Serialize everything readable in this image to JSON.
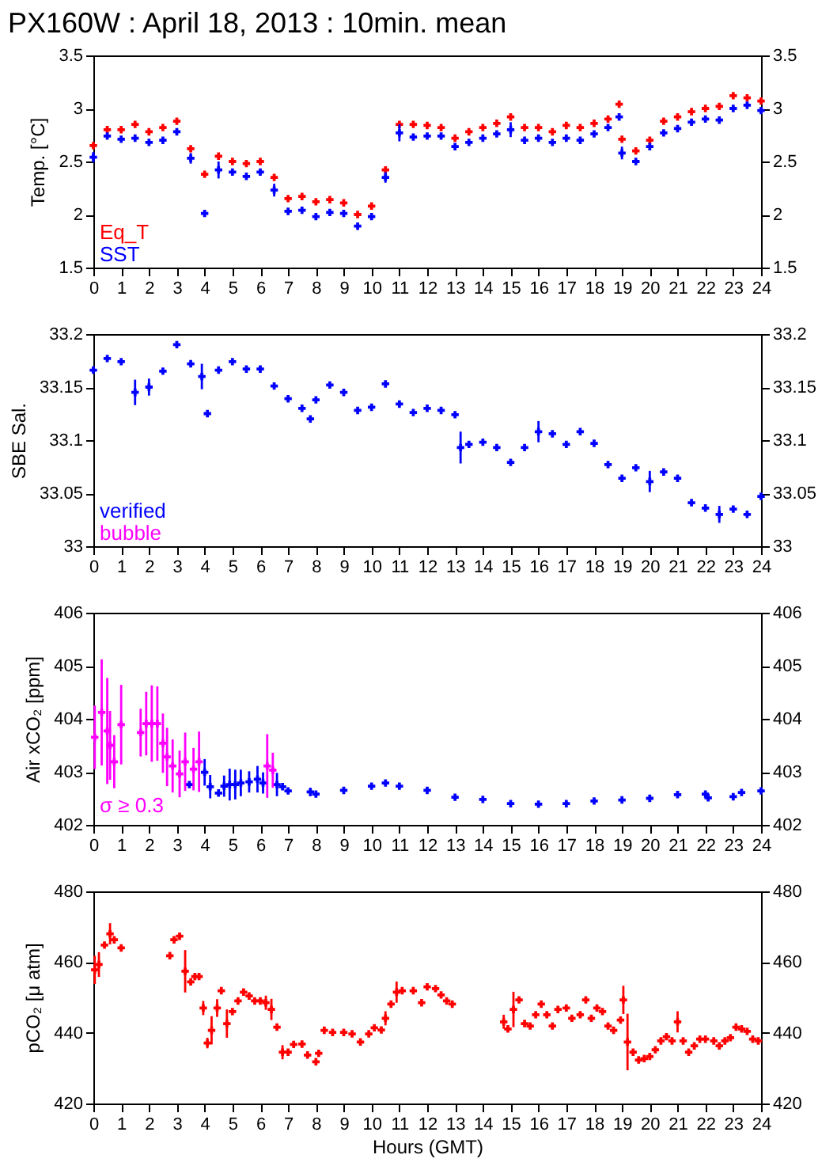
{
  "chart_data": [
    {
      "type": "scatter",
      "title": "PX160W : April 18, 2013 : 10min. mean",
      "ylabel": "Temp. [°C]",
      "xlim": [
        0,
        24
      ],
      "xticks": [
        0,
        1,
        2,
        3,
        4,
        5,
        6,
        7,
        8,
        9,
        10,
        11,
        12,
        13,
        14,
        15,
        16,
        17,
        18,
        19,
        20,
        21,
        22,
        23,
        24
      ],
      "ylim": [
        1.5,
        3.5
      ],
      "yticks": [
        1.5,
        2,
        2.5,
        3,
        3.5
      ],
      "y2lim": [
        1.5,
        3.5
      ],
      "y2ticks": [
        1.5,
        2,
        2.5,
        3,
        3.5
      ],
      "grid": false,
      "legend": "bottom left",
      "marker": "cross",
      "x": [
        0,
        0.5,
        1,
        1.5,
        2,
        2.5,
        3,
        3.5,
        4,
        4.5,
        5,
        5.5,
        6,
        6.5,
        7,
        7.5,
        8,
        8.5,
        9,
        9.5,
        10,
        10.5,
        11,
        11.5,
        12,
        12.5,
        13,
        13.5,
        14,
        14.5,
        15,
        15.5,
        16,
        16.5,
        17,
        17.5,
        18,
        18.5,
        18.9,
        19,
        19.5,
        20,
        20.5,
        21,
        21.5,
        22,
        22.5,
        23,
        23.5,
        24
      ],
      "series": [
        {
          "name": "Eq_T",
          "color": "#ff0000",
          "values": [
            2.65,
            2.8,
            2.8,
            2.85,
            2.78,
            2.82,
            2.88,
            2.62,
            2.38,
            2.55,
            2.5,
            2.48,
            2.5,
            2.35,
            2.15,
            2.17,
            2.12,
            2.14,
            2.11,
            2.0,
            2.08,
            2.42,
            2.85,
            2.85,
            2.84,
            2.82,
            2.72,
            2.78,
            2.82,
            2.86,
            2.92,
            2.82,
            2.82,
            2.78,
            2.84,
            2.82,
            2.86,
            2.9,
            3.04,
            2.71,
            2.6,
            2.7,
            2.88,
            2.92,
            2.97,
            3.0,
            3.02,
            3.12,
            3.1,
            3.07
          ]
        },
        {
          "name": "SST",
          "color": "#0000ff",
          "values": [
            2.54,
            2.74,
            2.71,
            2.72,
            2.68,
            2.7,
            2.78,
            2.53,
            2.01,
            2.42,
            2.4,
            2.36,
            2.4,
            2.23,
            2.03,
            2.04,
            1.98,
            2.02,
            2.01,
            1.89,
            1.98,
            2.35,
            2.77,
            2.73,
            2.74,
            2.74,
            2.64,
            2.68,
            2.72,
            2.76,
            2.8,
            2.7,
            2.72,
            2.68,
            2.72,
            2.7,
            2.76,
            2.82,
            2.92,
            2.58,
            2.5,
            2.64,
            2.77,
            2.81,
            2.87,
            2.9,
            2.89,
            3.0,
            3.03,
            2.98
          ],
          "errors": [
            0.05,
            null,
            null,
            null,
            null,
            null,
            null,
            0.05,
            null,
            0.08,
            null,
            null,
            null,
            0.06,
            null,
            null,
            null,
            null,
            null,
            null,
            null,
            0.05,
            0.08,
            null,
            null,
            null,
            null,
            null,
            null,
            null,
            0.07,
            null,
            null,
            null,
            null,
            null,
            null,
            null,
            null,
            0.06,
            null,
            null,
            null,
            null,
            null,
            null,
            null,
            null,
            null,
            null
          ]
        }
      ]
    },
    {
      "type": "scatter",
      "ylabel": "SBE Sal.",
      "xlim": [
        0,
        24
      ],
      "xticks": [
        0,
        1,
        2,
        3,
        4,
        5,
        6,
        7,
        8,
        9,
        10,
        11,
        12,
        13,
        14,
        15,
        16,
        17,
        18,
        19,
        20,
        21,
        22,
        23,
        24
      ],
      "ylim": [
        33,
        33.2
      ],
      "yticks": [
        33,
        33.05,
        33.1,
        33.15,
        33.2
      ],
      "y2lim": [
        33,
        33.2
      ],
      "y2ticks": [
        33,
        33.05,
        33.1,
        33.15,
        33.2
      ],
      "grid": false,
      "legend": "bottom left",
      "marker": "cross",
      "series": [
        {
          "name": "verified",
          "color": "#0000ff",
          "x": [
            0,
            0.5,
            1,
            1.5,
            2,
            2.5,
            3,
            3.5,
            3.9,
            4.1,
            4.5,
            5,
            5.5,
            6,
            6.5,
            7,
            7.5,
            7.8,
            8,
            8.5,
            9,
            9.5,
            10,
            10.5,
            11,
            11.5,
            12,
            12.5,
            13,
            13.2,
            13.5,
            14,
            14.5,
            15,
            15.5,
            16,
            16.5,
            17,
            17.5,
            18,
            18.5,
            19,
            19.5,
            20,
            20.5,
            21,
            21.5,
            22,
            22.5,
            23,
            23.5,
            24
          ],
          "values": [
            33.166,
            33.177,
            33.174,
            33.145,
            33.15,
            33.165,
            33.19,
            33.172,
            33.16,
            33.125,
            33.166,
            33.174,
            33.167,
            33.167,
            33.151,
            33.139,
            33.13,
            33.12,
            33.138,
            33.152,
            33.145,
            33.128,
            33.131,
            33.153,
            33.134,
            33.126,
            33.13,
            33.128,
            33.124,
            33.093,
            33.096,
            33.098,
            33.093,
            33.079,
            33.093,
            33.108,
            33.106,
            33.096,
            33.108,
            33.097,
            33.077,
            33.064,
            33.074,
            33.061,
            33.07,
            33.064,
            33.041,
            33.036,
            33.03,
            33.035,
            33.03,
            33.047
          ],
          "errors": [
            null,
            null,
            null,
            0.012,
            0.008,
            null,
            null,
            null,
            0.012,
            null,
            null,
            null,
            null,
            null,
            null,
            null,
            null,
            null,
            null,
            null,
            null,
            null,
            null,
            null,
            null,
            null,
            null,
            null,
            null,
            0.015,
            null,
            null,
            null,
            null,
            null,
            0.01,
            null,
            null,
            null,
            null,
            null,
            null,
            null,
            0.01,
            null,
            null,
            null,
            null,
            0.008,
            null,
            null,
            null
          ]
        },
        {
          "name": "bubble",
          "color": "#ff00ff"
        }
      ]
    },
    {
      "type": "scatter",
      "ylabel": "Air xCO₂ [ppm]",
      "xlim": [
        0,
        24
      ],
      "xticks": [
        0,
        1,
        2,
        3,
        4,
        5,
        6,
        7,
        8,
        9,
        10,
        11,
        12,
        13,
        14,
        15,
        16,
        17,
        18,
        19,
        20,
        21,
        22,
        23,
        24
      ],
      "ylim": [
        402,
        406
      ],
      "yticks": [
        402,
        403,
        404,
        405,
        406
      ],
      "y2lim": [
        402,
        406
      ],
      "y2ticks": [
        402,
        403,
        404,
        405,
        406
      ],
      "grid": false,
      "marker": "cross",
      "annotations": [
        "σ ≥ 0.3"
      ],
      "series": [
        {
          "color": "#0000ff",
          "x": [
            3.45,
            4.0,
            4.2,
            4.5,
            4.7,
            4.9,
            5.1,
            5.3,
            5.6,
            5.9,
            6.1,
            6.6,
            6.8,
            7.0,
            7.8,
            8,
            9,
            10,
            10.5,
            11,
            12,
            13,
            14,
            15,
            16,
            17,
            18,
            19,
            20,
            21,
            22,
            22.1,
            23,
            23.3,
            24
          ],
          "values": [
            402.76,
            402.99,
            402.72,
            402.6,
            402.73,
            402.76,
            402.76,
            402.79,
            402.81,
            402.86,
            402.79,
            402.76,
            402.72,
            402.64,
            402.62,
            402.58,
            402.65,
            402.73,
            402.79,
            402.73,
            402.65,
            402.52,
            402.48,
            402.4,
            402.39,
            402.4,
            402.45,
            402.47,
            402.5,
            402.57,
            402.58,
            402.51,
            402.53,
            402.61,
            402.64
          ],
          "errors": [
            0.05,
            0.25,
            0.22,
            null,
            0.2,
            0.3,
            0.28,
            0.25,
            0.2,
            0.25,
            0.2,
            0.22,
            null,
            null,
            0.08,
            null,
            null,
            null,
            null,
            null,
            null,
            null,
            null,
            null,
            null,
            null,
            null,
            null,
            null,
            null,
            null,
            null,
            null,
            null,
            null
          ]
        },
        {
          "color": "#ff00ff",
          "x": [
            0.05,
            0.3,
            0.5,
            0.6,
            0.75,
            1.0,
            1.7,
            1.9,
            2.1,
            2.3,
            2.5,
            2.65,
            2.85,
            3.1,
            3.3,
            3.6,
            3.8,
            6.25,
            6.45
          ],
          "values": [
            403.65,
            404.12,
            403.77,
            403.5,
            403.19,
            403.89,
            403.74,
            403.91,
            403.91,
            403.91,
            403.54,
            403.28,
            403.11,
            402.96,
            403.19,
            403.05,
            403.19,
            403.11,
            403.03
          ],
          "errors": [
            0.6,
            1.0,
            1.0,
            0.65,
            0.5,
            0.75,
            0.45,
            0.6,
            0.72,
            0.7,
            0.56,
            0.55,
            0.5,
            0.44,
            0.55,
            0.4,
            0.57,
            0.6,
            0.33
          ]
        }
      ]
    },
    {
      "type": "scatter",
      "xlabel": "Hours (GMT)",
      "ylabel": "pCO₂ [μ atm]",
      "xlim": [
        0,
        24
      ],
      "xticks": [
        0,
        1,
        2,
        3,
        4,
        5,
        6,
        7,
        8,
        9,
        10,
        11,
        12,
        13,
        14,
        15,
        16,
        17,
        18,
        19,
        20,
        21,
        22,
        23,
        24
      ],
      "ylim": [
        420,
        480
      ],
      "yticks": [
        420,
        440,
        460,
        480
      ],
      "y2lim": [
        420,
        480
      ],
      "y2ticks": [
        420,
        440,
        460,
        480
      ],
      "grid": false,
      "marker": "cross",
      "series": [
        {
          "color": "#ff0000",
          "x": [
            0.05,
            0.2,
            0.4,
            0.6,
            0.75,
            1.0,
            2.75,
            2.9,
            3.1,
            3.3,
            3.5,
            3.65,
            3.8,
            3.95,
            4.1,
            4.25,
            4.45,
            4.6,
            4.8,
            5,
            5.2,
            5.4,
            5.6,
            5.8,
            6,
            6.2,
            6.4,
            6.6,
            6.8,
            7,
            7.2,
            7.5,
            7.7,
            8,
            8.1,
            8.3,
            8.6,
            9,
            9.3,
            9.6,
            9.9,
            10.1,
            10.35,
            10.5,
            10.7,
            10.9,
            11.1,
            11.5,
            11.8,
            12,
            12.3,
            12.5,
            12.7,
            12.9,
            14.75,
            14.9,
            15.1,
            15.3,
            15.5,
            15.7,
            15.9,
            16.1,
            16.3,
            16.5,
            16.7,
            17,
            17.2,
            17.5,
            17.7,
            17.9,
            18.1,
            18.3,
            18.5,
            18.7,
            18.95,
            19.05,
            19.2,
            19.4,
            19.6,
            19.8,
            20,
            20.2,
            20.4,
            20.6,
            20.8,
            21,
            21.2,
            21.4,
            21.6,
            21.8,
            22,
            22.3,
            22.5,
            22.7,
            22.9,
            23.1,
            23.3,
            23.5,
            23.7,
            23.9
          ],
          "values": [
            457.8,
            459.3,
            464.8,
            468.0,
            466.3,
            464.0,
            461.8,
            466.3,
            467.3,
            457.4,
            454.4,
            455.9,
            455.9,
            447.0,
            437.1,
            440.7,
            447.0,
            451.9,
            442.6,
            446.0,
            449.0,
            451.5,
            450.4,
            449.0,
            449.0,
            448.5,
            446.6,
            441.6,
            434.5,
            434.5,
            436.7,
            436.8,
            433.7,
            431.8,
            434.2,
            440.7,
            440.1,
            440.1,
            439.7,
            437.4,
            439.7,
            441.4,
            440.8,
            444.1,
            448.1,
            451.5,
            451.9,
            451.9,
            448.5,
            453.0,
            452.5,
            450.7,
            449.0,
            448.1,
            443.1,
            441.1,
            446.6,
            449.3,
            442.6,
            441.9,
            445.1,
            448.1,
            445.1,
            441.9,
            446.6,
            447.0,
            444.1,
            445.1,
            449.3,
            444.1,
            447.0,
            446.0,
            441.9,
            440.7,
            443.6,
            449.3,
            437.4,
            434.5,
            432.3,
            432.7,
            433.3,
            435.2,
            437.7,
            438.9,
            437.7,
            443.1,
            437.7,
            434.5,
            436.3,
            438.2,
            438.2,
            437.7,
            436.3,
            437.7,
            438.6,
            441.6,
            441.1,
            440.4,
            438.2,
            437.7
          ],
          "errors": [
            4,
            3.5,
            null,
            3,
            null,
            null,
            null,
            null,
            null,
            6,
            null,
            null,
            null,
            2,
            1.5,
            4,
            2.5,
            null,
            4,
            null,
            null,
            null,
            null,
            null,
            null,
            2,
            3,
            null,
            2,
            null,
            null,
            null,
            null,
            null,
            null,
            null,
            null,
            null,
            null,
            null,
            null,
            null,
            null,
            2,
            null,
            3,
            null,
            null,
            null,
            null,
            null,
            null,
            null,
            null,
            2,
            null,
            5,
            null,
            null,
            null,
            null,
            null,
            null,
            null,
            null,
            null,
            null,
            null,
            null,
            null,
            null,
            null,
            null,
            null,
            null,
            4,
            8,
            null,
            null,
            null,
            null,
            null,
            null,
            null,
            null,
            3,
            null,
            null,
            null,
            null,
            null,
            null,
            null,
            null,
            null,
            null,
            null,
            null,
            null,
            null
          ]
        }
      ]
    }
  ]
}
